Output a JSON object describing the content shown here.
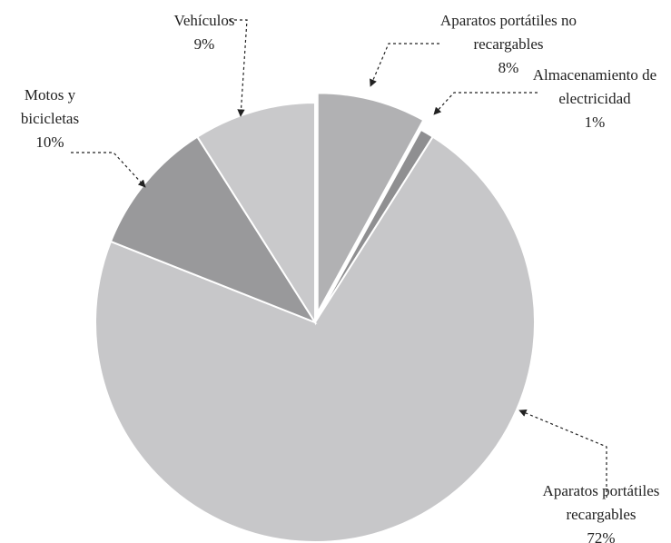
{
  "chart_data": {
    "type": "pie",
    "categories": [
      "Aparatos portátiles no recargables",
      "Almacenamiento de electricidad",
      "Aparatos portátiles recargables",
      "Motos y bicicletas",
      "Vehículos"
    ],
    "values": [
      8,
      1,
      72,
      10,
      9
    ],
    "value_labels": [
      "8%",
      "1%",
      "72%",
      "10%",
      "9%"
    ],
    "colors": [
      "#b1b1b3",
      "#8f8f91",
      "#c7c7c9",
      "#99999b",
      "#c9c9cb"
    ],
    "explode": [
      true,
      false,
      false,
      false,
      false
    ]
  }
}
